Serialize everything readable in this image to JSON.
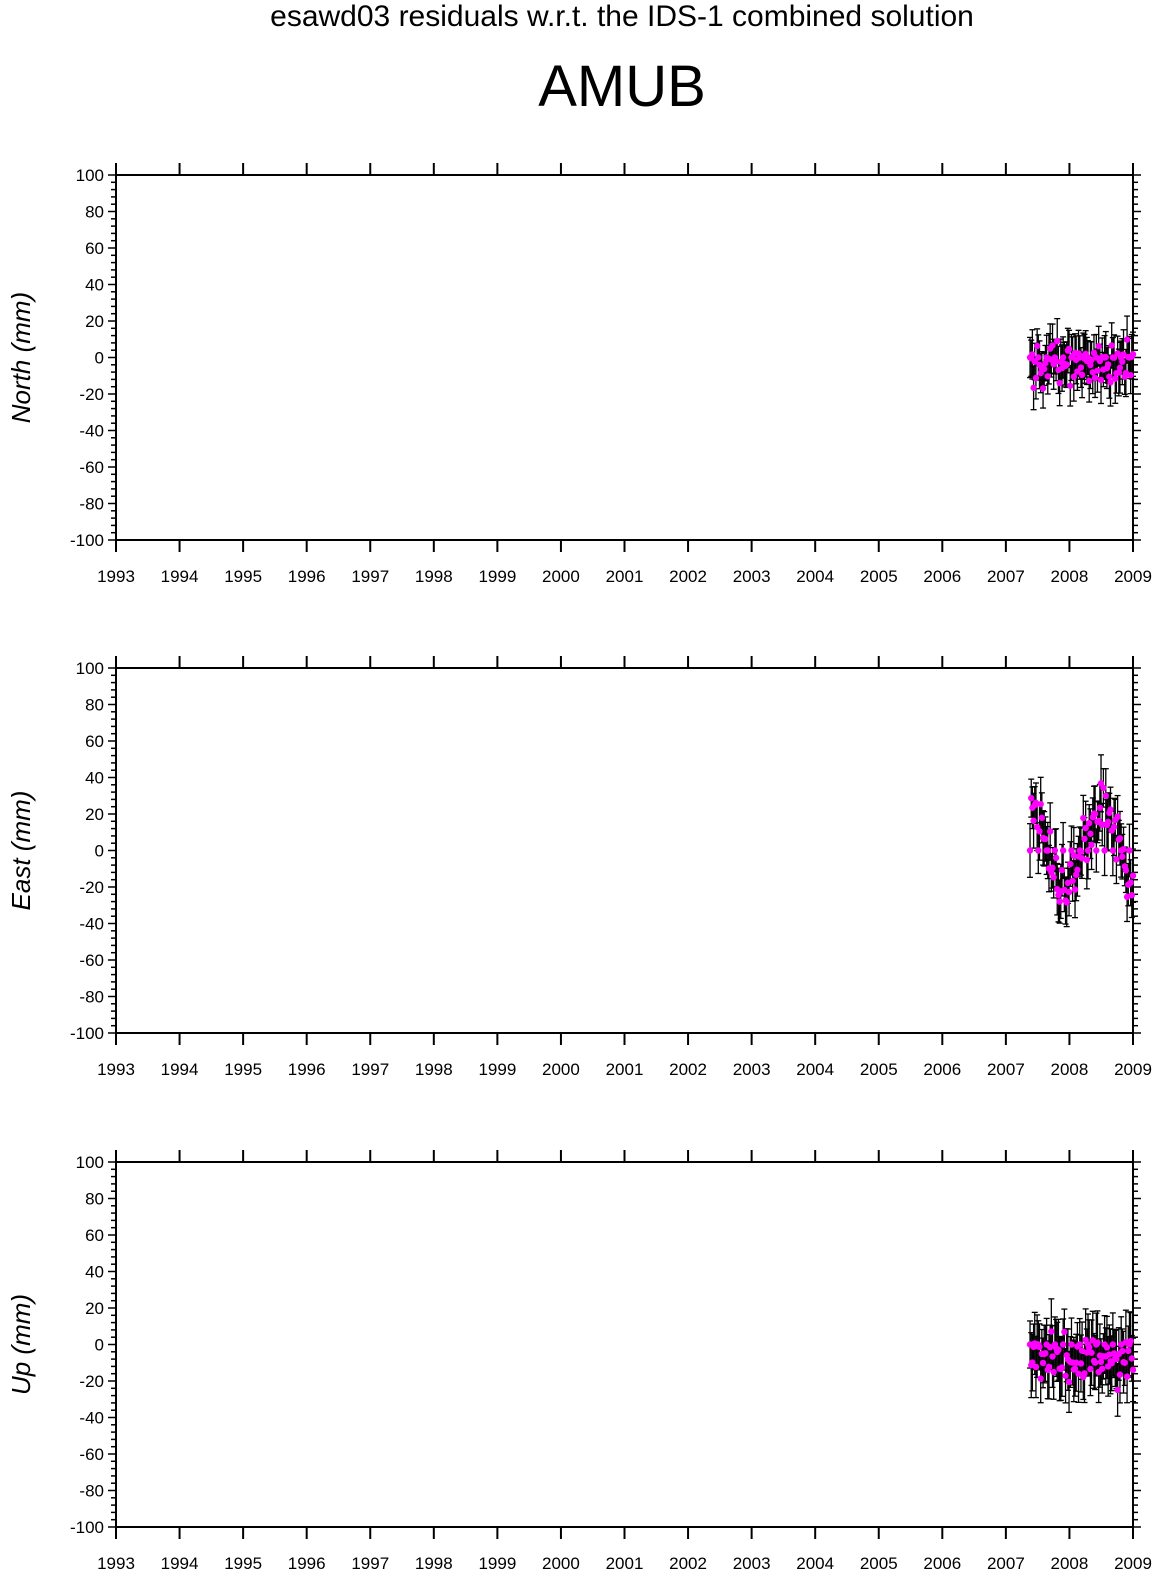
{
  "header": {
    "title": "esawd03 residuals w.r.t. the IDS-1 combined solution",
    "station": "AMUB"
  },
  "colors": {
    "points": "#ff00ff",
    "errorbars": "#000000",
    "axes": "#000000"
  },
  "chart_data": [
    {
      "type": "scatter",
      "ylabel": "North (mm)",
      "xlim": [
        1993,
        2009
      ],
      "ylim": [
        -100,
        100
      ],
      "xticks": [
        "1993",
        "1994",
        "1995",
        "1996",
        "1997",
        "1998",
        "1999",
        "2000",
        "2001",
        "2002",
        "2003",
        "2004",
        "2005",
        "2006",
        "2007",
        "2008",
        "2009"
      ],
      "yticks": [
        "100",
        "80",
        "60",
        "40",
        "20",
        "0",
        "-20",
        "-40",
        "-60",
        "-80",
        "-100"
      ],
      "error_bars": true,
      "grid": false,
      "series": [
        {
          "x": [],
          "y": [],
          "err": []
        }
      ]
    },
    {
      "type": "scatter",
      "ylabel": "East (mm)",
      "xlim": [
        1993,
        2009
      ],
      "ylim": [
        -100,
        100
      ],
      "xticks": [
        "1993",
        "1994",
        "1995",
        "1996",
        "1997",
        "1998",
        "1999",
        "2000",
        "2001",
        "2002",
        "2003",
        "2004",
        "2005",
        "2006",
        "2007",
        "2008",
        "2009"
      ],
      "yticks": [
        "100",
        "80",
        "60",
        "40",
        "20",
        "0",
        "-20",
        "-40",
        "-60",
        "-80",
        "-100"
      ],
      "error_bars": true,
      "grid": false,
      "series": [
        {
          "x": [],
          "y": [],
          "err": []
        }
      ]
    },
    {
      "type": "scatter",
      "ylabel": "Up (mm)",
      "xlim": [
        1993,
        2009
      ],
      "ylim": [
        -100,
        100
      ],
      "xticks": [
        "1993",
        "1994",
        "1995",
        "1996",
        "1997",
        "1998",
        "1999",
        "2000",
        "2001",
        "2002",
        "2003",
        "2004",
        "2005",
        "2006",
        "2007",
        "2008",
        "2009"
      ],
      "yticks": [
        "100",
        "80",
        "60",
        "40",
        "20",
        "0",
        "-20",
        "-40",
        "-60",
        "-80",
        "-100"
      ],
      "error_bars": true,
      "grid": false,
      "series": [
        {
          "x": [],
          "y": [],
          "err": []
        }
      ]
    }
  ]
}
